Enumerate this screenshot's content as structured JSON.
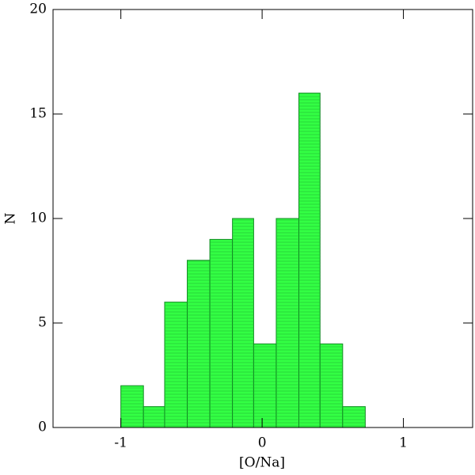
{
  "chart_data": {
    "type": "histogram",
    "x_label": "[O/Na]",
    "y_label": "N",
    "bins": [
      -1.0,
      -0.84,
      -0.69,
      -0.53,
      -0.37,
      -0.21,
      -0.06,
      0.1,
      0.26,
      0.41,
      0.57,
      0.73
    ],
    "values": [
      2,
      1,
      6,
      8,
      9,
      10,
      4,
      10,
      16,
      4,
      1
    ],
    "color": "#33ff44",
    "xlim": [
      -1.48,
      1.49
    ],
    "xticks": [
      -1,
      0,
      1
    ],
    "ylim": [
      0,
      20
    ],
    "yticks": [
      0,
      5,
      10,
      15,
      20
    ]
  }
}
